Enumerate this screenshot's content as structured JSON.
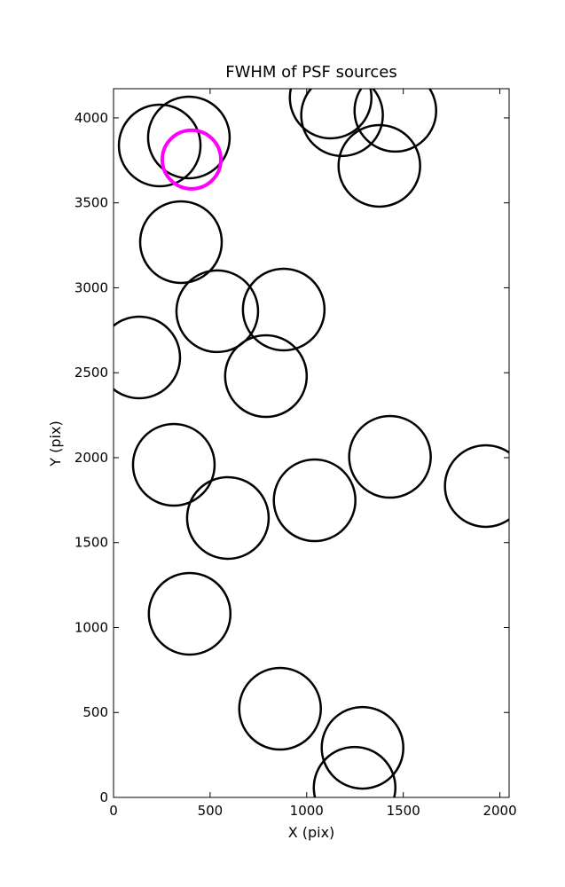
{
  "chart_data": {
    "type": "scatter",
    "title": "FWHM of PSF sources",
    "x_label": "X (pix)",
    "y_label": "Y (pix)",
    "xlim": [
      0,
      2048
    ],
    "ylim": [
      0,
      4172
    ],
    "xticks": [
      0,
      500,
      1000,
      1500,
      2000
    ],
    "yticks": [
      0,
      500,
      1000,
      1500,
      2000,
      2500,
      3000,
      3500,
      4000
    ],
    "marker": "open-circle",
    "series": [
      {
        "color": "#000000",
        "x": [
          239,
          390,
          1124,
          1183,
          1459,
          1376,
          349,
          537,
          881,
          133,
          789,
          312,
          592,
          1041,
          1431,
          1927,
          394,
          862,
          1289,
          1248
        ],
        "values": [
          3838,
          3885,
          4120,
          4016,
          4042,
          3718,
          3269,
          2862,
          2872,
          2590,
          2480,
          1958,
          1645,
          1749,
          2005,
          1833,
          1081,
          522,
          292,
          57
        ]
      },
      {
        "color": "#ff00ff",
        "x": [
          404
        ],
        "values": [
          3755
        ]
      }
    ]
  }
}
